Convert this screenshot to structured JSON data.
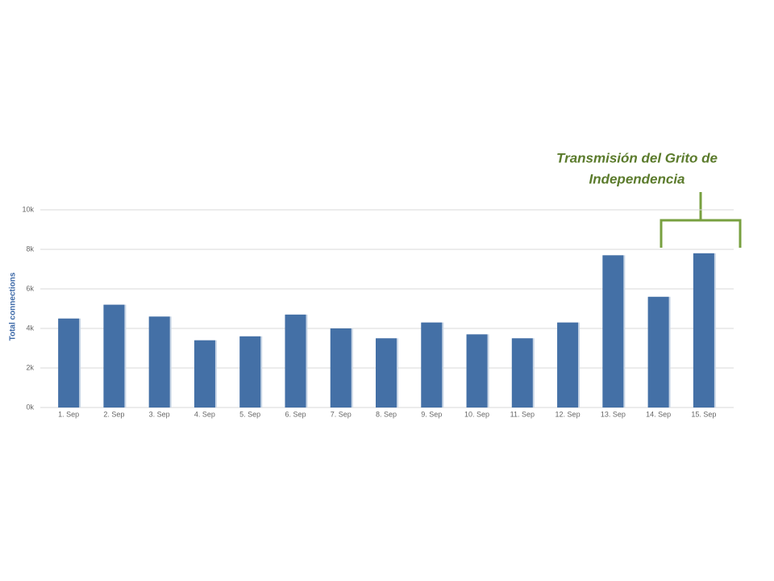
{
  "chart_data": {
    "type": "bar",
    "annotation": [
      "Transmisión  del Grito de",
      "Independencia"
    ],
    "y_axis_label": "Total connections",
    "categories": [
      "1. Sep",
      "2. Sep",
      "3. Sep",
      "4. Sep",
      "5. Sep",
      "6. Sep",
      "7. Sep",
      "8. Sep",
      "9. Sep",
      "10. Sep",
      "11. Sep",
      "12. Sep",
      "13. Sep",
      "14. Sep",
      "15. Sep"
    ],
    "values": [
      4500,
      5200,
      4600,
      3400,
      3600,
      4700,
      4000,
      3500,
      4300,
      3700,
      3500,
      4300,
      7700,
      5600,
      7800
    ],
    "color": "#4470a6",
    "ylim": [
      0,
      10000
    ],
    "yticks": [
      {
        "value": 0,
        "label": "0k"
      },
      {
        "value": 2000,
        "label": "2k"
      },
      {
        "value": 4000,
        "label": "4k"
      },
      {
        "value": 6000,
        "label": "6k"
      },
      {
        "value": 8000,
        "label": "8k"
      },
      {
        "value": 10000,
        "label": "10k"
      }
    ],
    "grid": true
  }
}
